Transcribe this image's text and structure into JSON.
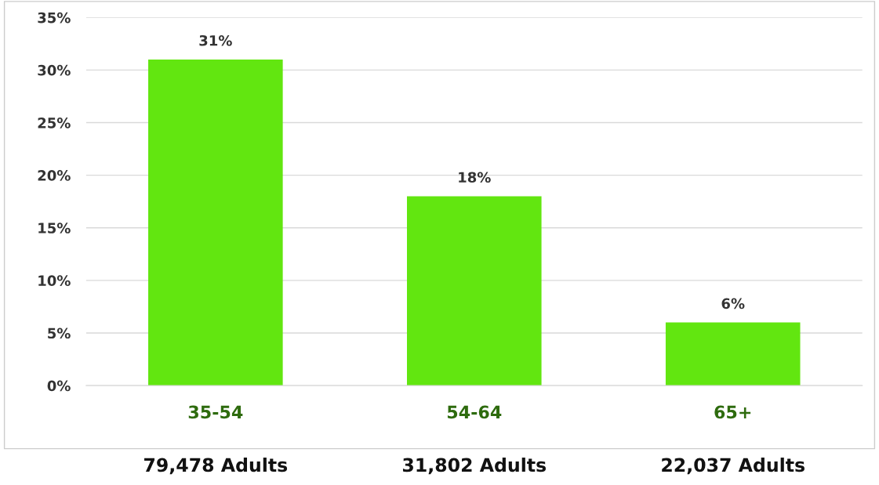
{
  "chart_data": {
    "type": "bar",
    "categories": [
      "35-54",
      "54-64",
      "65+"
    ],
    "values": [
      31,
      18,
      6
    ],
    "color": "#62e610",
    "data_labels": true,
    "value_labels": [
      "31%",
      "18%",
      "6%"
    ],
    "ylim": [
      0,
      35
    ],
    "yticks": [
      {
        "value": 0,
        "label": "0%"
      },
      {
        "value": 5,
        "label": "5%"
      },
      {
        "value": 10,
        "label": "10%"
      },
      {
        "value": 15,
        "label": "15%"
      },
      {
        "value": 20,
        "label": "20%"
      },
      {
        "value": 25,
        "label": "25%"
      },
      {
        "value": 30,
        "label": "30%"
      },
      {
        "value": 35,
        "label": "35%"
      }
    ],
    "grid": "y",
    "legend": false,
    "annotations": [
      "79,478 Adults",
      "31,802 Adults",
      "22,037 Adults"
    ]
  }
}
